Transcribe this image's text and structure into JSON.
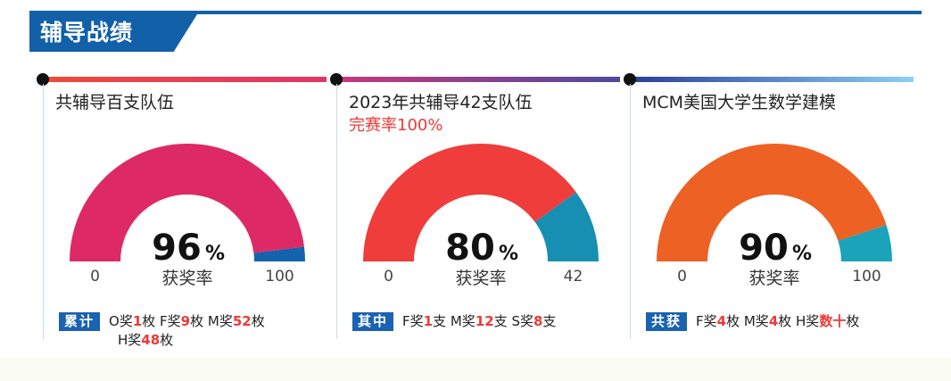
{
  "header": {
    "title": "辅导战绩"
  },
  "colors": {
    "header_blue": "#1260a8",
    "highlight_red": "#ec3a37",
    "badge_blue": "#1a62b2",
    "gauge_bg": "#1a62b2",
    "gauge_outline": "#ffffff"
  },
  "chart_data": [
    {
      "type": "gauge",
      "title": "共辅导百支队伍",
      "value_percent": 96,
      "value_label": "96",
      "unit": "%",
      "caption": "获奖率",
      "min_label": "0",
      "max_label": "100",
      "main_color": "#dd2a66",
      "rest_color": "#1463ac",
      "footer": {
        "badge": "累计",
        "parts": [
          {
            "t": "O奖"
          },
          {
            "t": "1",
            "h": true
          },
          {
            "t": "枚 F奖"
          },
          {
            "t": "9",
            "h": true
          },
          {
            "t": "枚 M奖"
          },
          {
            "t": "52",
            "h": true
          },
          {
            "t": "枚"
          }
        ],
        "parts2": [
          {
            "t": "H奖"
          },
          {
            "t": "48",
            "h": true
          },
          {
            "t": "枚"
          }
        ]
      }
    },
    {
      "type": "gauge",
      "title": "2023年共辅导42支队伍",
      "subtitle": "完赛率100%",
      "value_percent": 80,
      "value_label": "80",
      "unit": "%",
      "caption": "获奖率",
      "min_label": "0",
      "max_label": "42",
      "main_color": "#ee3d3b",
      "rest_color": "#168fb3",
      "footer": {
        "badge": "其中",
        "parts": [
          {
            "t": "F奖"
          },
          {
            "t": "1",
            "h": true
          },
          {
            "t": "支 M奖"
          },
          {
            "t": "12",
            "h": true
          },
          {
            "t": "支 S奖"
          },
          {
            "t": "8",
            "h": true
          },
          {
            "t": "支"
          }
        ],
        "parts2": []
      }
    },
    {
      "type": "gauge",
      "title": "MCM美国大学生数学建模",
      "value_percent": 90,
      "value_label": "90",
      "unit": "%",
      "caption": "获奖率",
      "min_label": "0",
      "max_label": "100",
      "main_color": "#ed6124",
      "rest_color": "#1aa3b9",
      "footer": {
        "badge": "共获",
        "parts": [
          {
            "t": "F奖"
          },
          {
            "t": "4",
            "h": true
          },
          {
            "t": "枚 M奖"
          },
          {
            "t": "4",
            "h": true
          },
          {
            "t": "枚 H奖"
          },
          {
            "t": "数十",
            "h": true
          },
          {
            "t": "枚"
          }
        ],
        "parts2": []
      }
    }
  ]
}
